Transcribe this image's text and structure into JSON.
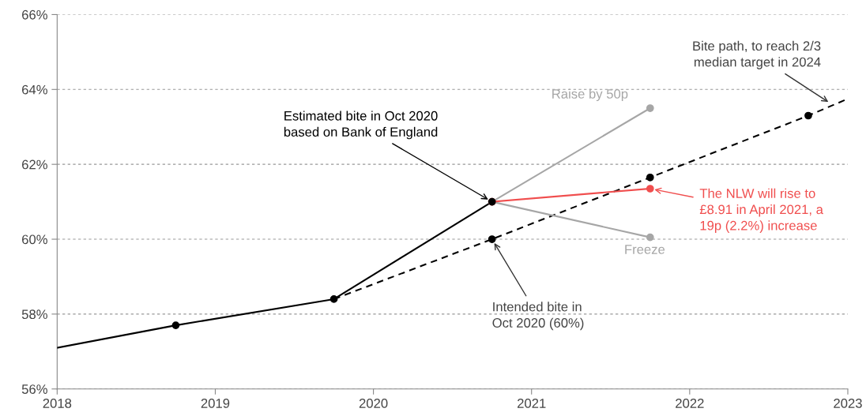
{
  "chart_data": {
    "type": "line",
    "xlim": [
      2018,
      2023
    ],
    "ylim": [
      56,
      66
    ],
    "xticks": [
      2018,
      2019,
      2020,
      2021,
      2022,
      2023
    ],
    "yticks": [
      {
        "value": 56,
        "label": "56%"
      },
      {
        "value": 58,
        "label": "58%"
      },
      {
        "value": 60,
        "label": "60%"
      },
      {
        "value": 62,
        "label": "62%"
      },
      {
        "value": 64,
        "label": "64%"
      },
      {
        "value": 66,
        "label": "66%"
      }
    ],
    "grid": "y",
    "series": [
      {
        "color": "#000000",
        "line_style": "solid",
        "marker": "none",
        "x": [
          2018,
          2018.75,
          2019.75,
          2020.75
        ],
        "values": [
          57.1,
          57.7,
          58.4,
          61.0
        ]
      },
      {
        "color": "#000000",
        "line_style": "dashed",
        "marker": "none",
        "x": [
          2019.75,
          2020.75,
          2021.75,
          2022.75,
          2023
        ],
        "values": [
          58.4,
          60.0,
          61.65,
          63.3,
          63.75
        ]
      },
      {
        "type": "scatter",
        "color": "#000000",
        "marker": "circle",
        "x": [
          2018.75,
          2019.75,
          2020.75
        ],
        "values": [
          57.7,
          58.4,
          61.0
        ]
      },
      {
        "type": "scatter",
        "color": "#000000",
        "marker": "circle",
        "x": [
          2020.75,
          2021.75,
          2022.75
        ],
        "values": [
          60.0,
          61.65,
          63.3
        ]
      },
      {
        "name": "Raise by 50p",
        "color": "#a6a6a6",
        "line_style": "solid",
        "marker": "circle",
        "x": [
          2020.75,
          2021.75
        ],
        "values": [
          61.0,
          63.5
        ]
      },
      {
        "name": "Freeze",
        "color": "#a6a6a6",
        "line_style": "solid",
        "marker": "circle",
        "x": [
          2020.75,
          2021.75
        ],
        "values": [
          61.0,
          60.05
        ]
      },
      {
        "color": "#f04e4e",
        "line_style": "solid",
        "marker": "circle",
        "x": [
          2020.75,
          2021.75
        ],
        "values": [
          61.0,
          61.35
        ]
      }
    ],
    "annotations": [
      {
        "text": "Bite path, to reach 2/3\nmedian target in 2024",
        "x": 2022.9,
        "y": 63.6
      },
      {
        "text": "Estimated bite in Oct 2020\nbased on Bank of England",
        "x": 2020.75,
        "y": 61.0
      },
      {
        "text": "The NLW will rise to\n£8.91 in April 2021, a\n19p (2.2%) increase",
        "x": 2021.75,
        "y": 61.35
      },
      {
        "text": "Intended bite in\nOct 2020 (60%)",
        "x": 2020.75,
        "y": 60.0
      }
    ]
  }
}
